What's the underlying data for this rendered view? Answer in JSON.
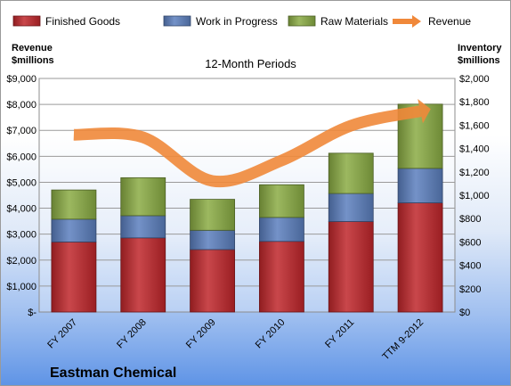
{
  "chart_data": {
    "type": "bar",
    "subtitle": "12-Month Periods",
    "company": "Eastman Chemical",
    "left_axis_title": [
      "Revenue",
      "$millions"
    ],
    "right_axis_title": [
      "Inventory",
      "$millions"
    ],
    "categories": [
      "FY 2007",
      "FY 2008",
      "FY 2009",
      "FY 2010",
      "FY 2011",
      "TTM 9-2012"
    ],
    "left_ticks": [
      "$-",
      "$1,000",
      "$2,000",
      "$3,000",
      "$4,000",
      "$5,000",
      "$6,000",
      "$7,000",
      "$8,000",
      "$9,000"
    ],
    "right_ticks": [
      "$0",
      "$200",
      "$400",
      "$600",
      "$800",
      "$1,000",
      "$1,200",
      "$1,400",
      "$1,600",
      "$1,800",
      "$2,000"
    ],
    "left_ylim": [
      0,
      9000
    ],
    "right_ylim": [
      0,
      2000
    ],
    "stacked": true,
    "legend_position": "top",
    "grid": true,
    "series": [
      {
        "name": "Finished Goods",
        "axis": "right",
        "color": "#c0262b",
        "values": [
          600,
          635,
          535,
          605,
          775,
          935
        ]
      },
      {
        "name": "Work in Progress",
        "axis": "right",
        "color": "#5b7fbe",
        "values": [
          195,
          190,
          165,
          205,
          240,
          295
        ]
      },
      {
        "name": "Raw Materials",
        "axis": "right",
        "color": "#8aac44",
        "values": [
          250,
          325,
          265,
          280,
          345,
          550
        ]
      },
      {
        "name": "Revenue",
        "axis": "left",
        "type": "line",
        "color": "#f0883a",
        "values": [
          6830,
          6730,
          5050,
          5840,
          7180,
          7740
        ]
      }
    ]
  }
}
